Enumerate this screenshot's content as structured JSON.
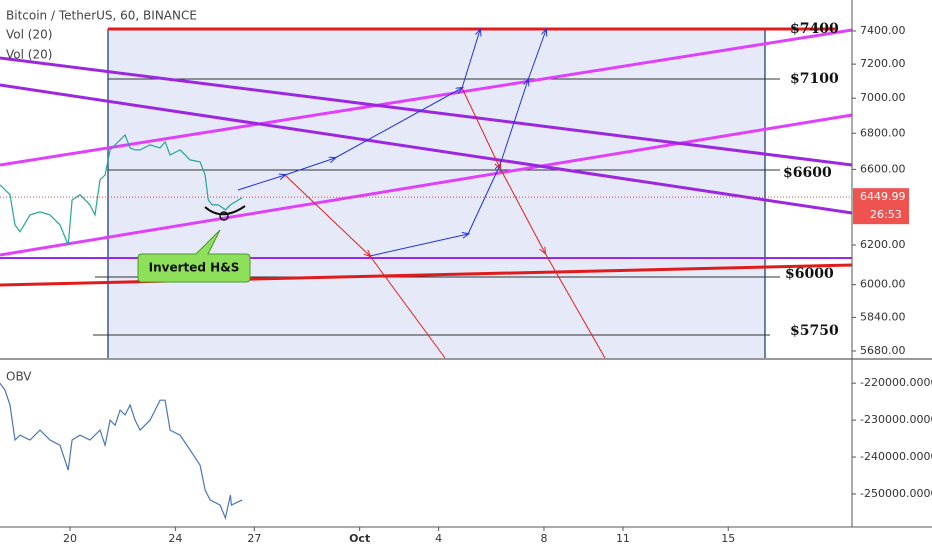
{
  "chart_data": [
    {
      "type": "line",
      "title": "Bitcoin / TetherUS, 60, BINANCE",
      "indicators": [
        "Vol (20)",
        "Vol (20)"
      ],
      "x": [
        17.34,
        17.72,
        17.91,
        18.1,
        18.48,
        18.86,
        19.24,
        19.62,
        19.93,
        20.08,
        20.38,
        20.76,
        20.95,
        21.14,
        21.33,
        21.52,
        21.71,
        21.9,
        22.09,
        22.28,
        22.47,
        22.66,
        23.04,
        23.42,
        23.61,
        23.8,
        24.18,
        24.56,
        24.94,
        25.13,
        25.25,
        25.4,
        25.63,
        25.9,
        26.09,
        26.39,
        26.54
      ],
      "series": [
        {
          "color": "#26a69a",
          "values": [
            6516,
            6463,
            6304,
            6268,
            6356,
            6372,
            6356,
            6304,
            6200,
            6435,
            6463,
            6409,
            6356,
            6543,
            6570,
            6707,
            6735,
            6763,
            6790,
            6718,
            6707,
            6707,
            6735,
            6718,
            6752,
            6679,
            6707,
            6652,
            6641,
            6570,
            6435,
            6409,
            6409,
            6383,
            6409,
            6435,
            6446
          ]
        }
      ],
      "xlim": [
        17.34,
        49.7
      ],
      "ylim": [
        5647,
        7592
      ],
      "log_scale": true,
      "yticks": [
        {
          "value": 7400,
          "label": "7400.00"
        },
        {
          "value": 7200,
          "label": "7200.00"
        },
        {
          "value": 7000,
          "label": "7000.00"
        },
        {
          "value": 6800,
          "label": "6800.00"
        },
        {
          "value": 6600,
          "label": "6600.00"
        },
        {
          "value": 6200,
          "label": "6200.00"
        },
        {
          "value": 6000,
          "label": "6000.00"
        },
        {
          "value": 5840,
          "label": "5840.00"
        },
        {
          "value": 5680,
          "label": "5680.00"
        }
      ],
      "last_price": 6449.99,
      "countdown": "26:53",
      "annotations": [
        "$7400",
        "$7100",
        "$6600",
        "$6000",
        "$5750",
        "Inverted H&S"
      ]
    },
    {
      "type": "line",
      "title": "OBV",
      "x": [
        17.34,
        17.53,
        17.72,
        17.91,
        18.1,
        18.48,
        18.86,
        19.24,
        19.62,
        19.93,
        20.08,
        20.38,
        20.76,
        21.14,
        21.33,
        21.52,
        21.71,
        21.9,
        22.09,
        22.28,
        22.47,
        22.66,
        23.04,
        23.42,
        23.61,
        23.8,
        24.18,
        24.56,
        24.94,
        25.13,
        25.32,
        25.7,
        25.9,
        26.09,
        26.13,
        26.54
      ],
      "series": [
        {
          "color": "#4a77b4",
          "values": [
            -220000,
            -221900,
            -225900,
            -235400,
            -234100,
            -235400,
            -232700,
            -235400,
            -236800,
            -243500,
            -235400,
            -234100,
            -235400,
            -232700,
            -236800,
            -230000,
            -231400,
            -227300,
            -228600,
            -225900,
            -230000,
            -232700,
            -230000,
            -224600,
            -224600,
            -232700,
            -234100,
            -238100,
            -242200,
            -248900,
            -251600,
            -253000,
            -256500,
            -250300,
            -253000,
            -251600
          ]
        }
      ],
      "xlim": [
        17.34,
        49.7
      ],
      "ylim": [
        -258400,
        -214000
      ],
      "yticks": [
        {
          "value": -220000,
          "label": "-220000.0000"
        },
        {
          "value": -230000,
          "label": "-230000.0000"
        },
        {
          "value": -240000,
          "label": "-240000.0000"
        },
        {
          "value": -250000,
          "label": "-250000.0000"
        }
      ],
      "xticks": [
        20,
        24,
        {
          "value": 27,
          "label": "27"
        },
        {
          "value": 31,
          "label": "Oct"
        },
        {
          "value": 34,
          "label": "4"
        },
        {
          "value": 38,
          "label": "8"
        },
        {
          "value": 41,
          "label": "11"
        },
        {
          "value": 45,
          "label": "15"
        }
      ]
    }
  ]
}
